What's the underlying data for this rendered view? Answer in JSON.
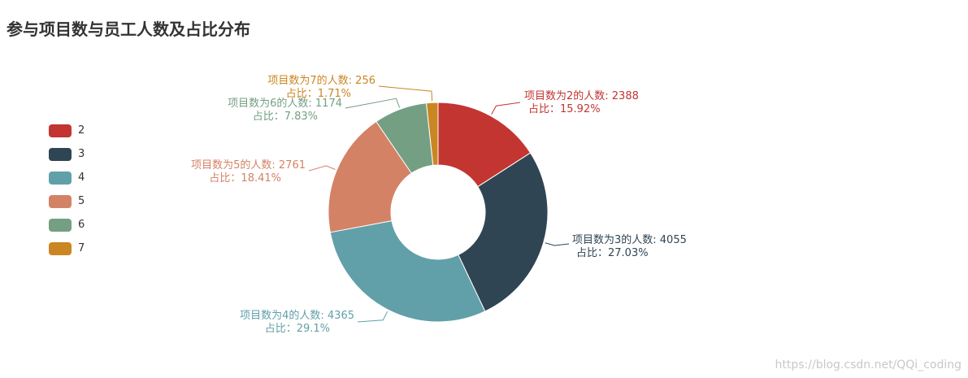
{
  "title": "参与项目数与员工人数及占比分布",
  "watermark": "https://blog.csdn.net/QQi_coding",
  "chart_data": {
    "type": "pie",
    "subtype": "donut",
    "title": "参与项目数与员工人数及占比分布",
    "legend_position": "left",
    "categories": [
      "2",
      "3",
      "4",
      "5",
      "6",
      "7"
    ],
    "values": [
      2388,
      4055,
      4365,
      2761,
      1174,
      256
    ],
    "percents": [
      "15.92%",
      "27.03%",
      "29.1%",
      "18.41%",
      "7.83%",
      "1.71%"
    ],
    "colors": [
      "#c23531",
      "#2f4554",
      "#61a0a8",
      "#d48265",
      "#749f83",
      "#ca8622"
    ],
    "labels": [
      [
        "项目数为2的人数: 2388",
        "占比：15.92%"
      ],
      [
        "项目数为3的人数: 4055",
        "占比：27.03%"
      ],
      [
        "项目数为4的人数: 4365",
        "占比：29.1%"
      ],
      [
        "项目数为5的人数: 2761",
        "占比：18.41%"
      ],
      [
        "项目数为6的人数: 1174",
        "占比：7.83%"
      ],
      [
        "项目数为7的人数: 256",
        "占比：1.71%"
      ]
    ]
  }
}
